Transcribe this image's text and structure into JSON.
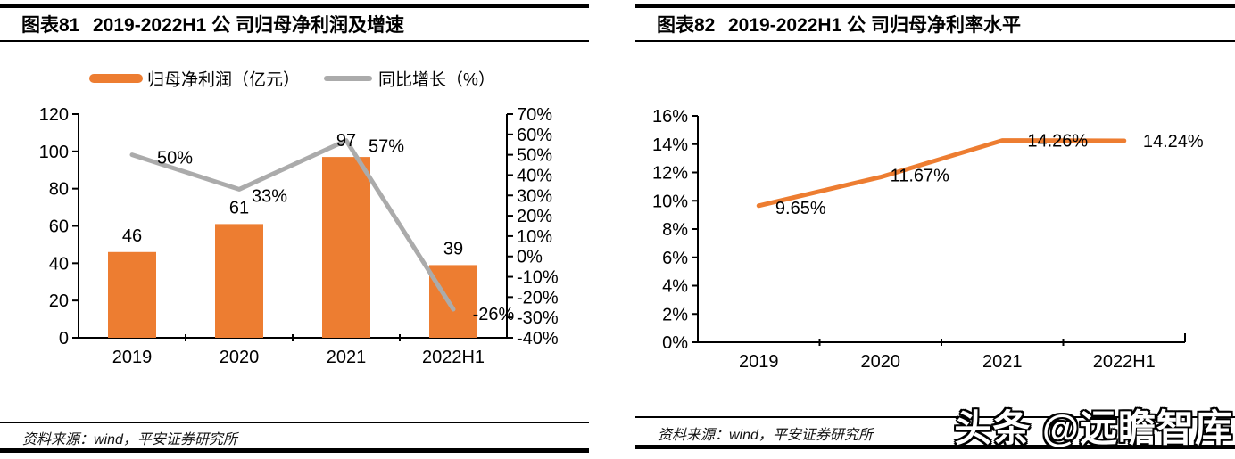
{
  "panels": [
    {
      "figure_label": "图表81",
      "title": "2019-2022H1 公 司归母净利润及增速",
      "source": "资料来源：wind，平安证券研究所"
    },
    {
      "figure_label": "图表82",
      "title": "2019-2022H1 公 司归母净利率水平",
      "source": "资料来源：wind，平安证券研究所"
    }
  ],
  "watermark": "头条 @远瞻智库",
  "colors": {
    "bar_orange": "#ED7D31",
    "line_gray": "#ABABAB",
    "line_orange": "#ED7D31",
    "axis_black": "#000000"
  },
  "chart_data": [
    {
      "type": "bar",
      "subtype": "combo-bar-line-dual-axis",
      "title": "2019-2022H1 公 司归母净利润及增速",
      "categories": [
        "2019",
        "2020",
        "2021",
        "2022H1"
      ],
      "series": [
        {
          "name": "归母净利润（亿元）",
          "chart": "bar",
          "axis": "left",
          "color": "#ED7D31",
          "values": [
            46,
            61,
            97,
            39
          ],
          "labels": [
            "46",
            "61",
            "97",
            "39"
          ]
        },
        {
          "name": "同比增长（%）",
          "chart": "line",
          "axis": "right",
          "color": "#ABABAB",
          "values": [
            50,
            33,
            57,
            -26
          ],
          "labels": [
            "50%",
            "33%",
            "57%",
            "-26%"
          ]
        }
      ],
      "left_axis": {
        "min": 0,
        "max": 120,
        "step": 20,
        "ticks": [
          "0",
          "20",
          "40",
          "60",
          "80",
          "100",
          "120"
        ]
      },
      "right_axis": {
        "min": -40,
        "max": 70,
        "step": 10,
        "ticks": [
          "-40%",
          "-30%",
          "-20%",
          "-10%",
          "0%",
          "10%",
          "20%",
          "30%",
          "40%",
          "50%",
          "60%",
          "70%"
        ]
      },
      "legend_position": "top",
      "grid": false,
      "line_label_offsets": {
        "dx": [
          48,
          34,
          45,
          45
        ],
        "dy": [
          3,
          7,
          6,
          5
        ]
      }
    },
    {
      "type": "line",
      "title": "2019-2022H1 公 司归母净利率水平",
      "categories": [
        "2019",
        "2020",
        "2021",
        "2022H1"
      ],
      "series": [
        {
          "chart": "line",
          "axis": "left",
          "color": "#ED7D31",
          "values": [
            9.65,
            11.67,
            14.26,
            14.24
          ],
          "labels": [
            "9.65%",
            "11.67%",
            "14.26%",
            "14.24%"
          ]
        }
      ],
      "left_axis": {
        "min": 0,
        "max": 16,
        "step": 2,
        "ticks": [
          "0%",
          "2%",
          "4%",
          "6%",
          "8%",
          "10%",
          "12%",
          "14%",
          "16%"
        ]
      },
      "legend_position": "none",
      "grid": false,
      "line_label_offsets": {
        "dx": [
          47,
          44,
          62,
          55
        ],
        "dy": [
          2,
          -2,
          0,
          0
        ]
      }
    }
  ]
}
